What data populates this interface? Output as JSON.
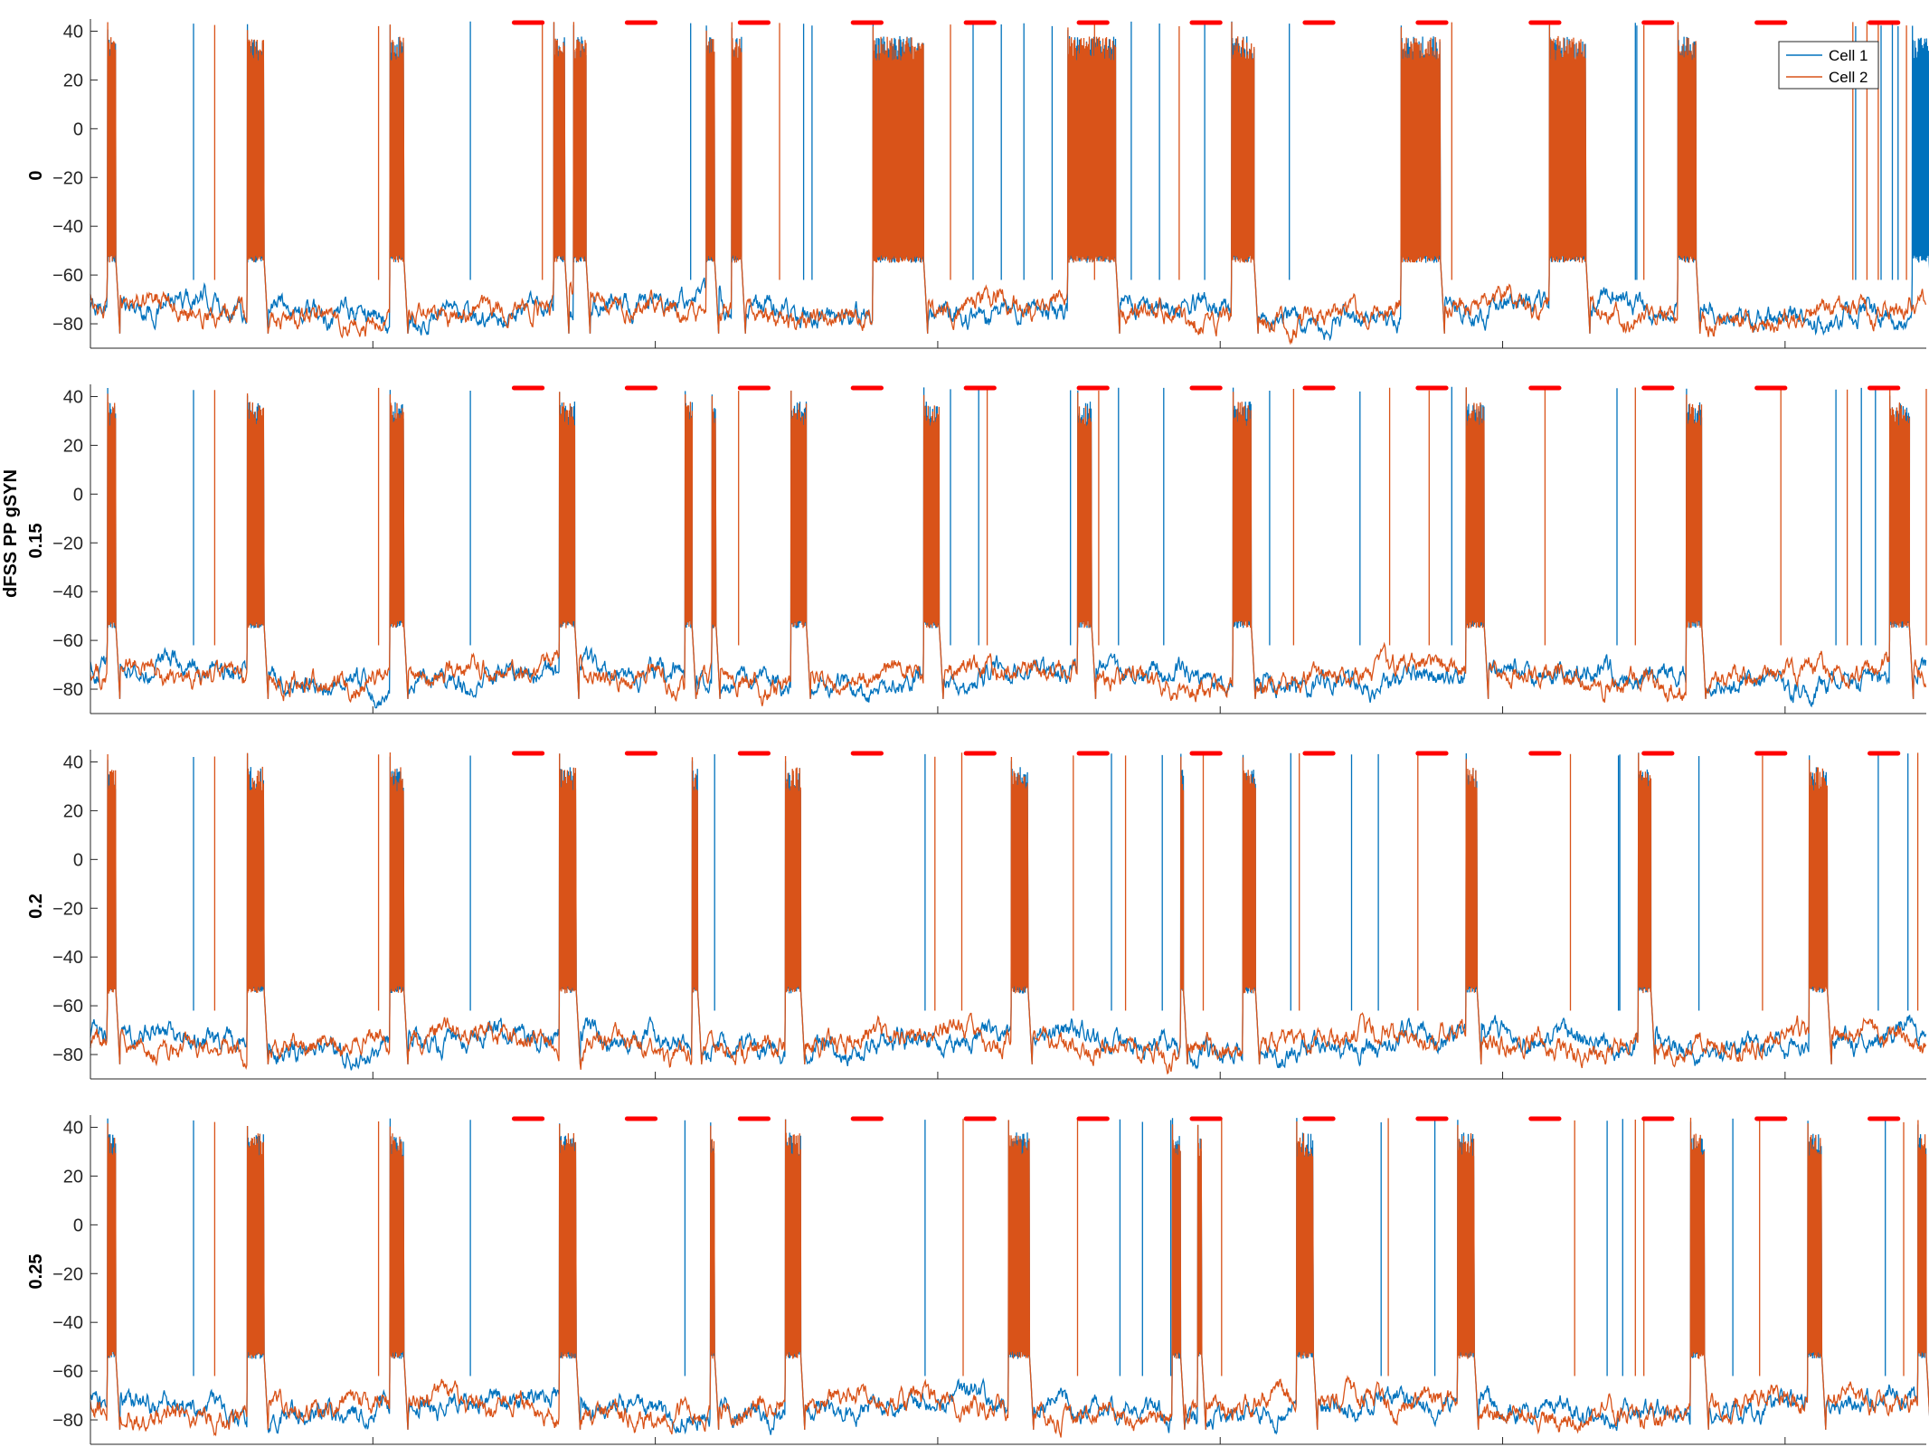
{
  "chart_data": {
    "type": "line",
    "layout": "4 vertically stacked panels sharing x axis",
    "shared_ylabel": "dFSS PP gSYN",
    "xlim": [
      0,
      6500
    ],
    "ylim": [
      -90,
      45
    ],
    "x_ticks": [
      0,
      1000,
      2000,
      3000,
      4000,
      5000,
      6000
    ],
    "y_ticks": [
      -80,
      -60,
      -40,
      -20,
      0,
      20,
      40
    ],
    "legend": {
      "placement": "top-right",
      "entries": [
        "Cell 1",
        "Cell 2"
      ]
    },
    "colors": {
      "cell1": "#0072BD",
      "cell2": "#D95319",
      "stim_bar": "#FF0000",
      "axis": "#262626"
    },
    "stimulus_bars": [
      [
        1500,
        1600
      ],
      [
        1900,
        2000
      ],
      [
        2300,
        2400
      ],
      [
        2700,
        2800
      ],
      [
        3100,
        3200
      ],
      [
        3500,
        3600
      ],
      [
        3900,
        4000
      ],
      [
        4300,
        4400
      ],
      [
        4700,
        4800
      ],
      [
        5100,
        5200
      ],
      [
        5500,
        5600
      ],
      [
        5900,
        6000
      ],
      [
        6300,
        6400
      ]
    ],
    "series_names": [
      "Cell 1",
      "Cell 2"
    ],
    "panels": [
      {
        "label": "0",
        "bursts": {
          "cell1": [
            [
              60,
              30
            ],
            [
              555,
              60
            ],
            [
              1060,
              50
            ],
            [
              1640,
              40
            ],
            [
              1710,
              45
            ],
            [
              2180,
              30
            ],
            [
              2270,
              35
            ],
            [
              2770,
              180
            ],
            [
              3460,
              170
            ],
            [
              4040,
              80
            ],
            [
              4640,
              140
            ],
            [
              5165,
              130
            ],
            [
              5620,
              65
            ],
            [
              6450,
              60
            ]
          ],
          "cell2": [
            [
              60,
              30
            ],
            [
              555,
              60
            ],
            [
              1060,
              50
            ],
            [
              1640,
              40
            ],
            [
              1710,
              45
            ],
            [
              2180,
              30
            ],
            [
              2270,
              35
            ],
            [
              2770,
              180
            ],
            [
              3460,
              170
            ],
            [
              4040,
              80
            ],
            [
              4640,
              140
            ],
            [
              5165,
              130
            ],
            [
              5620,
              65
            ]
          ]
        },
        "spikes": {
          "cell1": [
            365,
            1345,
            2125,
            2525,
            2555,
            3125,
            3225,
            3305,
            3405,
            3685,
            3785,
            3945,
            4245,
            5470,
            5475,
            6250,
            6340,
            6380,
            6400
          ],
          "cell2": [
            440,
            1020,
            1600,
            2440,
            3045,
            3555,
            3855,
            4820,
            5500,
            6240,
            6290,
            6330,
            6430
          ]
        }
      },
      {
        "label": "0.15",
        "bursts": {
          "cell1": [
            [
              60,
              30
            ],
            [
              555,
              60
            ],
            [
              1060,
              50
            ],
            [
              1660,
              55
            ],
            [
              2105,
              25
            ],
            [
              2200,
              15
            ],
            [
              2480,
              55
            ],
            [
              2950,
              55
            ],
            [
              3495,
              50
            ],
            [
              4045,
              65
            ],
            [
              4870,
              65
            ],
            [
              5650,
              55
            ],
            [
              6370,
              70
            ]
          ],
          "cell2": [
            [
              60,
              30
            ],
            [
              555,
              60
            ],
            [
              1060,
              50
            ],
            [
              1660,
              55
            ],
            [
              2105,
              25
            ],
            [
              2200,
              15
            ],
            [
              2480,
              55
            ],
            [
              2950,
              55
            ],
            [
              3495,
              50
            ],
            [
              4045,
              65
            ],
            [
              4870,
              65
            ],
            [
              5650,
              55
            ],
            [
              6370,
              70
            ]
          ]
        },
        "spikes": {
          "cell1": [
            365,
            1345,
            3045,
            3145,
            3470,
            3640,
            3800,
            4175,
            4495,
            4820,
            5405,
            6180,
            6270,
            6320
          ],
          "cell2": [
            440,
            1020,
            2295,
            3175,
            3570,
            4260,
            4600,
            4740,
            5150,
            5470,
            5985,
            6220,
            6500
          ]
        }
      },
      {
        "label": "0.2",
        "bursts": {
          "cell1": [
            [
              60,
              30
            ],
            [
              555,
              60
            ],
            [
              1060,
              50
            ],
            [
              1660,
              60
            ],
            [
              2130,
              20
            ],
            [
              2460,
              55
            ],
            [
              3260,
              60
            ],
            [
              3860,
              10
            ],
            [
              4080,
              45
            ],
            [
              4870,
              40
            ],
            [
              5480,
              45
            ],
            [
              6085,
              65
            ]
          ],
          "cell2": [
            [
              60,
              30
            ],
            [
              555,
              60
            ],
            [
              1060,
              50
            ],
            [
              1660,
              60
            ],
            [
              2130,
              20
            ],
            [
              2460,
              55
            ],
            [
              3260,
              60
            ],
            [
              3860,
              10
            ],
            [
              4080,
              45
            ],
            [
              4870,
              40
            ],
            [
              5480,
              45
            ],
            [
              6085,
              65
            ]
          ]
        },
        "spikes": {
          "cell1": [
            365,
            1345,
            2210,
            2955,
            3615,
            3795,
            4250,
            4465,
            4560,
            5410,
            5415,
            5695,
            6330,
            6435
          ],
          "cell2": [
            440,
            1020,
            2990,
            3085,
            3480,
            3665,
            3940,
            4280,
            4700,
            5240,
            5920,
            6470
          ]
        }
      },
      {
        "label": "0.25",
        "bursts": {
          "cell1": [
            [
              60,
              30
            ],
            [
              555,
              60
            ],
            [
              1060,
              50
            ],
            [
              1660,
              60
            ],
            [
              2195,
              15
            ],
            [
              2460,
              55
            ],
            [
              3250,
              75
            ],
            [
              3830,
              30
            ],
            [
              3920,
              15
            ],
            [
              4270,
              60
            ],
            [
              4840,
              60
            ],
            [
              5665,
              50
            ],
            [
              6080,
              50
            ],
            [
              6470,
              30
            ]
          ],
          "cell2": [
            [
              60,
              30
            ],
            [
              555,
              60
            ],
            [
              1060,
              50
            ],
            [
              1660,
              60
            ],
            [
              2195,
              15
            ],
            [
              2460,
              55
            ],
            [
              3250,
              75
            ],
            [
              3830,
              30
            ],
            [
              3920,
              15
            ],
            [
              4270,
              60
            ],
            [
              4840,
              60
            ],
            [
              5665,
              50
            ],
            [
              6080,
              50
            ],
            [
              6470,
              30
            ]
          ]
        },
        "spikes": {
          "cell1": [
            365,
            1345,
            2105,
            2955,
            3645,
            3725,
            3825,
            4570,
            4760,
            5370,
            5425,
            5815,
            6355
          ],
          "cell2": [
            440,
            1020,
            3090,
            3495,
            4005,
            4595,
            5255,
            5470,
            5500,
            5910,
            6420
          ]
        }
      }
    ]
  }
}
